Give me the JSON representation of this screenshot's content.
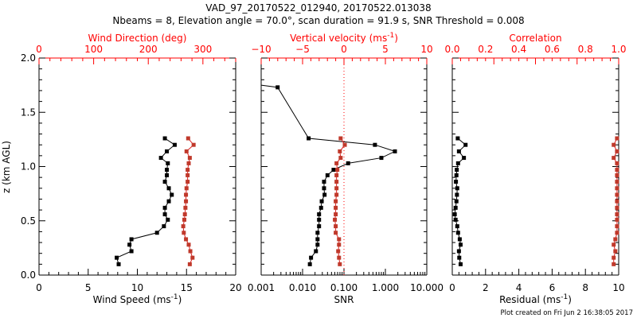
{
  "title_line1": "VAD_97_20170522_012940, 20170522.013038",
  "title_line2": "Nbeams = 8, Elevation angle = 70.0°, scan duration = 91.9 s, SNR Threshold = 0.008",
  "footer": "Plot created on Fri Jun  2 16:38:05 2017",
  "colors": {
    "primary": "#000000",
    "secondary_axis": "#ff0000",
    "secondary_series": "#c0392b"
  },
  "chart_data": [
    {
      "type": "line",
      "panel": "wind",
      "ylabel": "z (km AGL)",
      "ylim": [
        0,
        2
      ],
      "yticks": [
        "0.0",
        "0.5",
        "1.0",
        "1.5",
        "2.0"
      ],
      "bottom_axis": {
        "label": "Wind Speed (ms",
        "label_sup": "-1",
        "label_end": ")",
        "range": [
          0,
          20
        ],
        "ticks": [
          "0",
          "5",
          "10",
          "15",
          "20"
        ]
      },
      "top_axis": {
        "label": "Wind Direction (deg)",
        "range": [
          0,
          360
        ],
        "ticks": [
          "0",
          "100",
          "200",
          "300"
        ]
      },
      "z": [
        1.26,
        1.2,
        1.14,
        1.08,
        1.03,
        0.97,
        0.92,
        0.86,
        0.8,
        0.74,
        0.68,
        0.62,
        0.56,
        0.51,
        0.45,
        0.39,
        0.33,
        0.28,
        0.22,
        0.16,
        0.1
      ],
      "series": [
        {
          "name": "Wind Speed",
          "axis": "bottom",
          "values": [
            12.8,
            13.8,
            13.0,
            12.4,
            13.1,
            13.0,
            13.0,
            12.8,
            13.2,
            13.5,
            13.2,
            12.8,
            12.8,
            13.1,
            12.7,
            12.0,
            9.4,
            9.2,
            9.4,
            7.9,
            8.1
          ]
        },
        {
          "name": "Wind Direction",
          "axis": "top",
          "values": [
            273,
            283,
            270,
            276,
            274,
            272,
            272,
            272,
            270,
            269,
            269,
            268,
            267,
            266,
            264,
            265,
            269,
            274,
            277,
            281,
            276
          ]
        }
      ]
    },
    {
      "type": "line",
      "panel": "snr",
      "ylim": [
        0,
        2
      ],
      "bottom_axis": {
        "label": "SNR",
        "scale": "log",
        "range": [
          0.001,
          10
        ],
        "ticks": [
          "0.001",
          "0.010",
          "0.100",
          "1.000",
          "10.000"
        ]
      },
      "top_axis": {
        "label": "Vertical velocity (ms",
        "label_sup": "-1",
        "label_end": ")",
        "range": [
          -10,
          10
        ],
        "ticks": [
          "-10",
          "-5",
          "0",
          "5",
          "10"
        ]
      },
      "reference_line": {
        "axis": "top",
        "value": 0,
        "style": "dotted"
      },
      "series": [
        {
          "name": "SNR",
          "axis": "bottom",
          "z": [
            1.75,
            1.73,
            1.26,
            1.2,
            1.14,
            1.08,
            1.03,
            0.97,
            0.92,
            0.86,
            0.8,
            0.74,
            0.68,
            0.62,
            0.56,
            0.51,
            0.45,
            0.39,
            0.33,
            0.28,
            0.22,
            0.16,
            0.1
          ],
          "values": [
            0.001,
            0.0025,
            0.014,
            0.56,
            1.7,
            0.8,
            0.126,
            0.056,
            0.04,
            0.033,
            0.033,
            0.034,
            0.029,
            0.028,
            0.025,
            0.025,
            0.025,
            0.023,
            0.023,
            0.023,
            0.021,
            0.016,
            0.015
          ],
          "markers_from": 1
        },
        {
          "name": "Vertical velocity",
          "axis": "top",
          "z": [
            1.26,
            1.2,
            1.14,
            1.08,
            1.03,
            0.97,
            0.92,
            0.86,
            0.8,
            0.74,
            0.68,
            0.62,
            0.56,
            0.51,
            0.45,
            0.39,
            0.33,
            0.28,
            0.22,
            0.16,
            0.1
          ],
          "values": [
            -0.4,
            0.1,
            -0.5,
            -0.4,
            -0.9,
            -0.8,
            -0.9,
            -0.9,
            -0.9,
            -0.9,
            -1.0,
            -1.0,
            -1.0,
            -1.1,
            -1.0,
            -1.0,
            -0.6,
            -0.6,
            -0.7,
            -0.6,
            -0.5
          ]
        }
      ]
    },
    {
      "type": "line",
      "panel": "residual",
      "ylim": [
        0,
        2
      ],
      "bottom_axis": {
        "label": "Residual (ms",
        "label_sup": "-1",
        "label_end": ")",
        "range": [
          0,
          10
        ],
        "ticks": [
          "0",
          "2",
          "4",
          "6",
          "8",
          "10"
        ]
      },
      "top_axis": {
        "label": "Correlation",
        "range": [
          0,
          1
        ],
        "ticks": [
          "0.0",
          "0.2",
          "0.4",
          "0.6",
          "0.8",
          "1.0"
        ]
      },
      "z": [
        1.26,
        1.2,
        1.14,
        1.08,
        1.03,
        0.97,
        0.92,
        0.86,
        0.8,
        0.74,
        0.68,
        0.62,
        0.56,
        0.51,
        0.45,
        0.39,
        0.33,
        0.28,
        0.22,
        0.16,
        0.1
      ],
      "series": [
        {
          "name": "Residual",
          "axis": "bottom",
          "values": [
            0.33,
            0.8,
            0.4,
            0.7,
            0.35,
            0.27,
            0.25,
            0.22,
            0.3,
            0.28,
            0.25,
            0.2,
            0.15,
            0.2,
            0.3,
            0.35,
            0.45,
            0.5,
            0.4,
            0.42,
            0.5
          ]
        },
        {
          "name": "Correlation",
          "axis": "top",
          "values": [
            0.99,
            0.97,
            0.99,
            0.97,
            0.99,
            0.99,
            0.99,
            0.99,
            0.99,
            0.99,
            0.99,
            0.99,
            0.99,
            0.99,
            0.99,
            0.99,
            0.98,
            0.97,
            0.98,
            0.97,
            0.97
          ]
        }
      ]
    }
  ]
}
